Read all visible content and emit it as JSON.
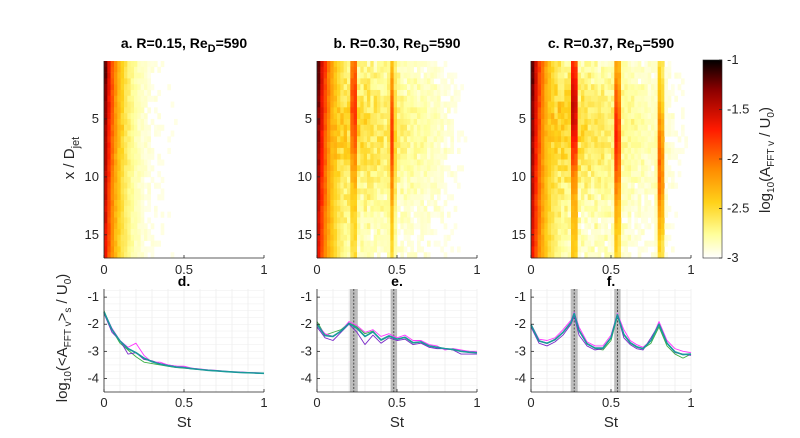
{
  "figure": {
    "colorbar": {
      "label": "log10(A_FFT v / U0)",
      "label_parts": [
        "log",
        "10",
        "(A",
        "FFT v",
        " / U",
        "0",
        ")"
      ],
      "ticks": [
        "-1",
        "-1.5",
        "-2",
        "-2.5",
        "-3"
      ],
      "tick_values": [
        -1,
        -1.5,
        -2,
        -2.5,
        -3
      ],
      "range": [
        -3,
        -1
      ],
      "colormap": [
        "#000000",
        "#8b0000",
        "#ff1a00",
        "#ff7a00",
        "#ffd21a",
        "#ffff9a",
        "#ffffff"
      ]
    }
  },
  "chart_data": [
    {
      "type": "heatmap",
      "panel": "a",
      "title_main": "a. R=0.15, Re",
      "title_sub": "D",
      "title_tail": "=590",
      "xlabel": "",
      "ylabel": "x / D",
      "ylabel_sub": "jet",
      "xlim": [
        0,
        1
      ],
      "ylim": [
        17,
        0
      ],
      "xticks": [
        "0",
        "0.5",
        "1"
      ],
      "yticks": [
        "5",
        "10",
        "15"
      ],
      "peaks": [],
      "decay_length": 0.09,
      "extent_st": 0.25
    },
    {
      "type": "heatmap",
      "panel": "b",
      "title_main": "b. R=0.30, Re",
      "title_sub": "D",
      "title_tail": "=590",
      "xlim": [
        0,
        1
      ],
      "ylim": [
        17,
        0
      ],
      "xticks": [
        "0",
        "0.5",
        "1"
      ],
      "yticks": [
        "5",
        "10",
        "15"
      ],
      "peaks": [
        0.23,
        0.47
      ],
      "decay_length": 0.1,
      "extent_st": 0.95
    },
    {
      "type": "heatmap",
      "panel": "c",
      "title_main": "c. R=0.37, Re",
      "title_sub": "D",
      "title_tail": "=590",
      "xlim": [
        0,
        1
      ],
      "ylim": [
        17,
        0
      ],
      "xticks": [
        "0",
        "0.5",
        "1"
      ],
      "yticks": [
        "5",
        "10",
        "15"
      ],
      "peaks": [
        0.27,
        0.54,
        0.81
      ],
      "decay_length": 0.1,
      "extent_st": 1.0
    },
    {
      "type": "line",
      "panel": "d",
      "title": "d.",
      "xlabel": "St",
      "ylabel": "log10(<A_FFT v>s / U0)",
      "xlim": [
        0,
        1
      ],
      "ylim": [
        -4.5,
        -0.7
      ],
      "xticks": [
        "0",
        "0.5",
        "1"
      ],
      "yticks": [
        "-1",
        "-2",
        "-3",
        "-4"
      ],
      "x": [
        0,
        0.05,
        0.1,
        0.15,
        0.2,
        0.25,
        0.3,
        0.35,
        0.4,
        0.45,
        0.5,
        0.55,
        0.6,
        0.65,
        0.7,
        0.75,
        0.8,
        0.85,
        0.9,
        0.95,
        1.0
      ],
      "shaded_bands": [],
      "series": [
        {
          "name": "green",
          "color": "#3cb043",
          "width": 0.9,
          "values": [
            -1.5,
            -2.2,
            -2.7,
            -2.95,
            -3.2,
            -3.4,
            -3.45,
            -3.5,
            -3.55,
            -3.6,
            -3.62,
            -3.65,
            -3.67,
            -3.7,
            -3.72,
            -3.74,
            -3.76,
            -3.78,
            -3.79,
            -3.8,
            -3.81
          ]
        },
        {
          "name": "purple",
          "color": "#7a2ac8",
          "width": 0.9,
          "values": [
            -1.6,
            -2.3,
            -2.6,
            -3.1,
            -3.05,
            -3.3,
            -3.35,
            -3.45,
            -3.5,
            -3.55,
            -3.6,
            -3.62,
            -3.66,
            -3.7,
            -3.72,
            -3.74,
            -3.76,
            -3.77,
            -3.79,
            -3.8,
            -3.82
          ]
        },
        {
          "name": "magenta",
          "color": "#ff33ff",
          "width": 0.9,
          "values": [
            -1.55,
            -2.15,
            -2.6,
            -2.85,
            -2.7,
            -3.15,
            -3.4,
            -3.4,
            -3.5,
            -3.55,
            -3.55,
            -3.62,
            -3.65,
            -3.68,
            -3.7,
            -3.73,
            -3.75,
            -3.76,
            -3.78,
            -3.79,
            -3.8
          ]
        },
        {
          "name": "blue",
          "color": "#1f4fd8",
          "width": 1.1,
          "values": [
            -1.55,
            -2.2,
            -2.62,
            -2.9,
            -3.05,
            -3.25,
            -3.38,
            -3.47,
            -3.53,
            -3.58,
            -3.6,
            -3.64,
            -3.67,
            -3.7,
            -3.72,
            -3.74,
            -3.76,
            -3.78,
            -3.79,
            -3.8,
            -3.81
          ]
        },
        {
          "name": "teal",
          "color": "#1a9a9a",
          "width": 1.6,
          "values": [
            -1.55,
            -2.2,
            -2.62,
            -2.9,
            -3.05,
            -3.25,
            -3.38,
            -3.47,
            -3.53,
            -3.58,
            -3.6,
            -3.64,
            -3.67,
            -3.7,
            -3.72,
            -3.74,
            -3.76,
            -3.78,
            -3.79,
            -3.8,
            -3.81
          ]
        }
      ]
    },
    {
      "type": "line",
      "panel": "e",
      "title": "e.",
      "xlabel": "St",
      "xlim": [
        0,
        1
      ],
      "ylim": [
        -4.5,
        -0.7
      ],
      "xticks": [
        "0",
        "0.5",
        "1"
      ],
      "yticks": [
        "-1",
        "-2",
        "-3",
        "-4"
      ],
      "x": [
        0,
        0.05,
        0.1,
        0.15,
        0.2,
        0.25,
        0.3,
        0.35,
        0.4,
        0.45,
        0.5,
        0.55,
        0.6,
        0.65,
        0.7,
        0.75,
        0.8,
        0.85,
        0.9,
        0.95,
        1.0
      ],
      "shaded_bands": [
        {
          "center": 0.23,
          "half_width": 0.025
        },
        {
          "center": 0.48,
          "half_width": 0.02
        }
      ],
      "series": [
        {
          "name": "green",
          "color": "#3cb043",
          "width": 0.9,
          "values": [
            -1.9,
            -2.4,
            -2.3,
            -2.2,
            -1.95,
            -2.1,
            -2.35,
            -2.25,
            -2.6,
            -2.45,
            -2.55,
            -2.5,
            -2.7,
            -2.65,
            -2.8,
            -2.85,
            -2.9,
            -2.95,
            -3.0,
            -3.0,
            -3.05
          ]
        },
        {
          "name": "purple",
          "color": "#7a2ac8",
          "width": 0.9,
          "values": [
            -2.1,
            -2.5,
            -2.6,
            -2.3,
            -2.0,
            -2.3,
            -2.75,
            -2.4,
            -2.7,
            -2.5,
            -2.6,
            -2.55,
            -2.75,
            -2.7,
            -2.85,
            -2.9,
            -2.9,
            -2.95,
            -3.1,
            -3.1,
            -3.1
          ]
        },
        {
          "name": "magenta",
          "color": "#ff33ff",
          "width": 0.9,
          "values": [
            -2.0,
            -2.35,
            -2.45,
            -2.25,
            -1.9,
            -2.05,
            -2.3,
            -2.2,
            -2.45,
            -2.35,
            -2.5,
            -2.4,
            -2.6,
            -2.6,
            -2.75,
            -2.8,
            -2.95,
            -2.9,
            -2.95,
            -3.0,
            -3.0
          ]
        },
        {
          "name": "blue",
          "color": "#1f4fd8",
          "width": 1.1,
          "values": [
            -2.0,
            -2.42,
            -2.45,
            -2.25,
            -1.97,
            -2.15,
            -2.45,
            -2.28,
            -2.58,
            -2.43,
            -2.55,
            -2.48,
            -2.68,
            -2.65,
            -2.8,
            -2.85,
            -2.9,
            -2.93,
            -3.0,
            -3.03,
            -3.05
          ]
        },
        {
          "name": "teal",
          "color": "#1a9a9a",
          "width": 1.6,
          "values": [
            -2.0,
            -2.42,
            -2.45,
            -2.25,
            -1.97,
            -2.15,
            -2.45,
            -2.28,
            -2.58,
            -2.43,
            -2.55,
            -2.48,
            -2.68,
            -2.65,
            -2.8,
            -2.85,
            -2.9,
            -2.93,
            -3.0,
            -3.03,
            -3.05
          ]
        }
      ]
    },
    {
      "type": "line",
      "panel": "f",
      "title": "f.",
      "xlabel": "St",
      "xlim": [
        0,
        1
      ],
      "ylim": [
        -4.5,
        -0.7
      ],
      "xticks": [
        "0",
        "0.5",
        "1"
      ],
      "yticks": [
        "-1",
        "-2",
        "-3",
        "-4"
      ],
      "x": [
        0,
        0.05,
        0.1,
        0.15,
        0.2,
        0.25,
        0.27,
        0.3,
        0.35,
        0.4,
        0.45,
        0.5,
        0.54,
        0.58,
        0.62,
        0.66,
        0.7,
        0.75,
        0.8,
        0.85,
        0.9,
        0.95,
        1.0
      ],
      "shaded_bands": [
        {
          "center": 0.27,
          "half_width": 0.022
        },
        {
          "center": 0.54,
          "half_width": 0.02
        }
      ],
      "series": [
        {
          "name": "green",
          "color": "#3cb043",
          "width": 0.9,
          "values": [
            -2.0,
            -2.6,
            -2.7,
            -2.55,
            -2.3,
            -1.95,
            -1.6,
            -2.2,
            -2.7,
            -2.9,
            -2.95,
            -2.6,
            -1.7,
            -2.4,
            -2.7,
            -2.85,
            -2.9,
            -2.7,
            -2.1,
            -2.8,
            -3.1,
            -3.25,
            -3.1
          ]
        },
        {
          "name": "purple",
          "color": "#7a2ac8",
          "width": 0.9,
          "values": [
            -2.1,
            -2.7,
            -2.8,
            -2.65,
            -2.4,
            -2.0,
            -1.7,
            -2.4,
            -2.8,
            -2.95,
            -2.9,
            -2.5,
            -1.65,
            -2.5,
            -2.75,
            -2.9,
            -2.95,
            -2.5,
            -2.0,
            -2.7,
            -3.05,
            -3.1,
            -3.15
          ]
        },
        {
          "name": "magenta",
          "color": "#ff33ff",
          "width": 0.9,
          "values": [
            -2.0,
            -2.55,
            -2.6,
            -2.5,
            -2.2,
            -1.85,
            -1.55,
            -2.1,
            -2.65,
            -2.8,
            -2.8,
            -2.4,
            -1.6,
            -2.2,
            -2.6,
            -2.75,
            -2.85,
            -2.6,
            -1.9,
            -2.6,
            -2.9,
            -3.0,
            -3.05
          ]
        },
        {
          "name": "blue",
          "color": "#1f4fd8",
          "width": 1.1,
          "values": [
            -2.02,
            -2.62,
            -2.7,
            -2.57,
            -2.3,
            -1.93,
            -1.6,
            -2.23,
            -2.72,
            -2.88,
            -2.88,
            -2.5,
            -1.65,
            -2.37,
            -2.68,
            -2.83,
            -2.9,
            -2.6,
            -2.0,
            -2.7,
            -3.02,
            -3.12,
            -3.1
          ]
        },
        {
          "name": "teal",
          "color": "#1a9a9a",
          "width": 1.6,
          "values": [
            -2.02,
            -2.62,
            -2.7,
            -2.57,
            -2.3,
            -1.93,
            -1.6,
            -2.23,
            -2.72,
            -2.88,
            -2.88,
            -2.5,
            -1.65,
            -2.37,
            -2.68,
            -2.83,
            -2.9,
            -2.6,
            -2.0,
            -2.7,
            -3.02,
            -3.12,
            -3.1
          ]
        }
      ]
    }
  ]
}
